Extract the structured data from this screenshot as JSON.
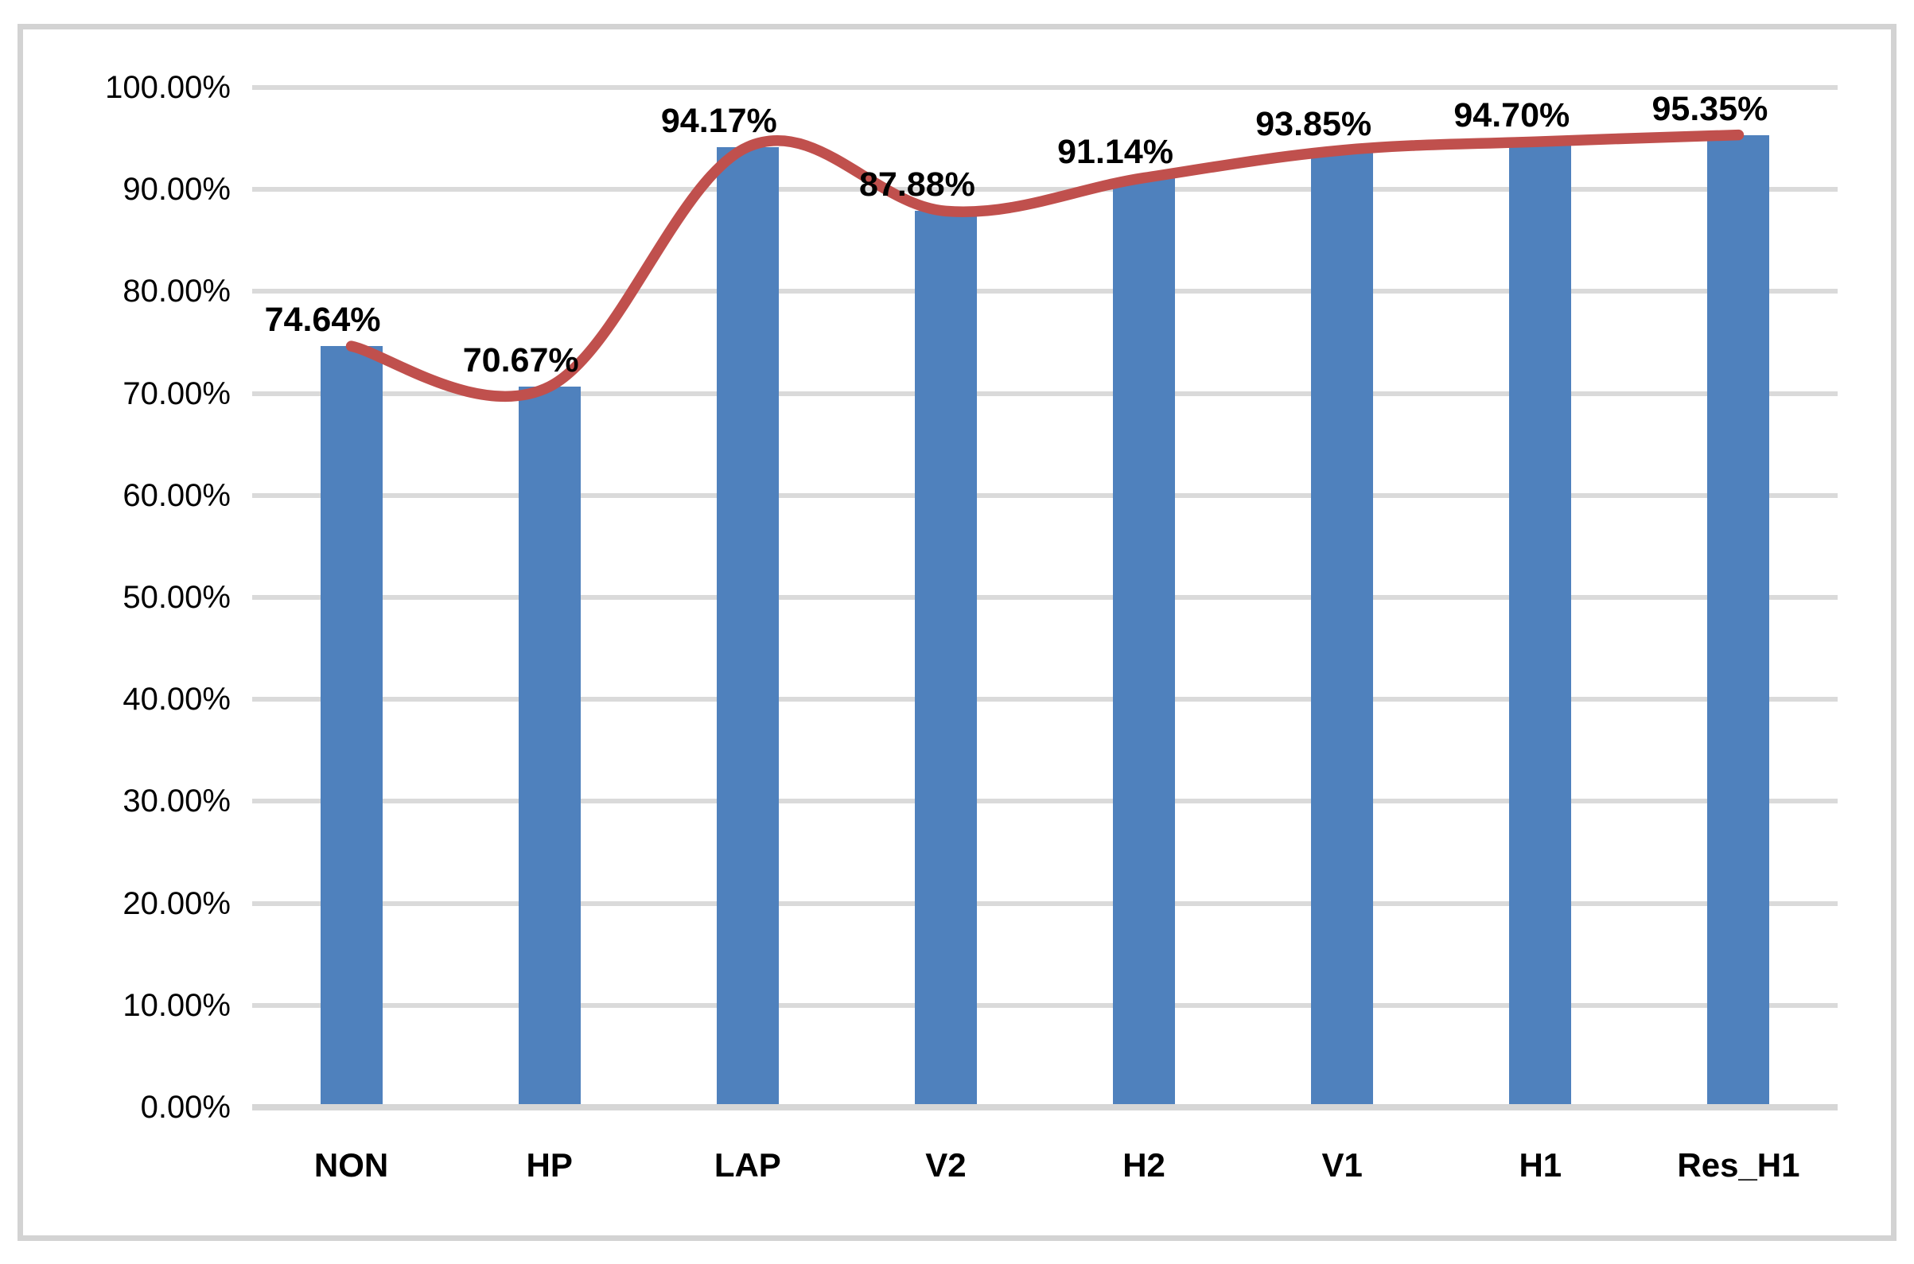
{
  "chart_data": {
    "type": "bar",
    "title": "",
    "xlabel": "",
    "ylabel": "",
    "categories": [
      "NON",
      "HP",
      "LAP",
      "V2",
      "H2",
      "V1",
      "H1",
      "Res_H1"
    ],
    "series": [
      {
        "name": "bar-series",
        "type": "bar",
        "values": [
          74.64,
          70.67,
          94.17,
          87.88,
          91.14,
          93.85,
          94.7,
          95.35
        ]
      },
      {
        "name": "line-series",
        "type": "line",
        "values": [
          74.64,
          70.67,
          94.17,
          87.88,
          91.14,
          93.85,
          94.7,
          95.35
        ]
      }
    ],
    "data_labels": [
      "74.64%",
      "70.67%",
      "94.17%",
      "87.88%",
      "91.14%",
      "93.85%",
      "94.70%",
      "95.35%"
    ],
    "ylim": [
      0,
      100
    ],
    "ytick_labels": [
      "0.00%",
      "10.00%",
      "20.00%",
      "30.00%",
      "40.00%",
      "50.00%",
      "60.00%",
      "70.00%",
      "80.00%",
      "90.00%",
      "100.00%"
    ],
    "grid": true,
    "legend_position": "none",
    "colors": {
      "bar": "#4F81BD",
      "line": "#C0504D",
      "gridline": "#DADADA",
      "axis_line": "#D6D6D6",
      "text": "#000000",
      "frame_border": "#D3D3D3",
      "background": "#FFFFFF"
    }
  }
}
